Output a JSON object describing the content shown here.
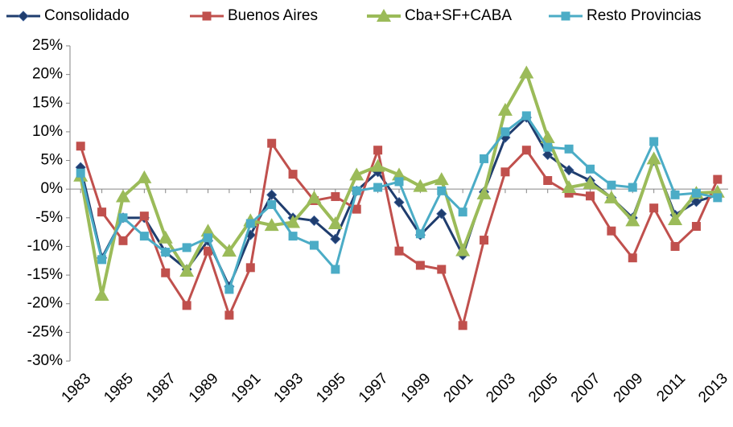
{
  "chart_data": {
    "type": "line",
    "x": [
      1983,
      1984,
      1985,
      1986,
      1987,
      1988,
      1989,
      1990,
      1991,
      1992,
      1993,
      1994,
      1995,
      1996,
      1997,
      1998,
      1999,
      2000,
      2001,
      2002,
      2003,
      2004,
      2005,
      2006,
      2007,
      2008,
      2009,
      2010,
      2011,
      2012,
      2013
    ],
    "xlim": [
      1982.5,
      2013.5
    ],
    "xticks": [
      1983,
      1985,
      1987,
      1989,
      1991,
      1993,
      1995,
      1997,
      1999,
      2001,
      2003,
      2005,
      2007,
      2009,
      2011,
      2013
    ],
    "ylim": [
      -30,
      25
    ],
    "yticks": [
      {
        "value": -30,
        "label": "-30%"
      },
      {
        "value": -25,
        "label": "-25%"
      },
      {
        "value": -20,
        "label": "-20%"
      },
      {
        "value": -15,
        "label": "-15%"
      },
      {
        "value": -10,
        "label": "-10%"
      },
      {
        "value": -5,
        "label": "-5%"
      },
      {
        "value": 0,
        "label": "0%"
      },
      {
        "value": 5,
        "label": "5%"
      },
      {
        "value": 10,
        "label": "10%"
      },
      {
        "value": 15,
        "label": "15%"
      },
      {
        "value": 20,
        "label": "20%"
      },
      {
        "value": 25,
        "label": "25%"
      }
    ],
    "grid": false,
    "legend": "top",
    "series": [
      {
        "name": "Consolidado",
        "color": "#1f3d6e",
        "marker": "diamond",
        "values": [
          3.8,
          -12,
          -5,
          -5,
          -11,
          -14,
          -9,
          -17,
          -8,
          -1,
          -5,
          -5.5,
          -8.7,
          -0.3,
          3,
          -2.3,
          -8,
          -4.3,
          -11.5,
          -0.5,
          9,
          12.5,
          6,
          3.3,
          1.5,
          -1.5,
          -5,
          5,
          -4.5,
          -2.2,
          -1
        ]
      },
      {
        "name": "Buenos Aires",
        "color": "#c0504d",
        "marker": "square",
        "values": [
          7.5,
          -4,
          -9,
          -4.7,
          -14.6,
          -20.3,
          -10.8,
          -22,
          -13.7,
          8,
          2.6,
          -2,
          -1.3,
          -3.5,
          6.8,
          -10.8,
          -13.3,
          -14,
          -23.8,
          -8.9,
          3,
          6.8,
          1.5,
          -0.7,
          -1.2,
          -7.3,
          -12,
          -3.3,
          -10,
          -6.5,
          1.7
        ]
      },
      {
        "name": "Cba+SF+CABA",
        "color": "#9bbb59",
        "marker": "triangle",
        "values": [
          2.3,
          -18.5,
          -1.3,
          2,
          -8.5,
          -14.3,
          -7.3,
          -10.8,
          -5.5,
          -6.3,
          -5.8,
          -1.5,
          -6,
          2.5,
          4,
          2.5,
          0.5,
          1.7,
          -10.7,
          -0.8,
          13.8,
          20.3,
          9,
          0.3,
          1,
          -1.5,
          -5.5,
          5.3,
          -5.3,
          -0.7,
          -0.5
        ]
      },
      {
        "name": "Resto Provincias",
        "color": "#4bacc6",
        "marker": "square",
        "values": [
          2.8,
          -12.3,
          -5,
          -8.2,
          -11,
          -10.2,
          -8.5,
          -17.5,
          -6,
          -2.7,
          -8.2,
          -9.8,
          -14,
          -0.3,
          0.3,
          1.3,
          -7.8,
          -0.3,
          -4,
          5.3,
          10,
          12.8,
          7.3,
          7,
          3.5,
          0.7,
          0.3,
          8.3,
          -1,
          -0.7,
          -1.5
        ]
      }
    ]
  }
}
